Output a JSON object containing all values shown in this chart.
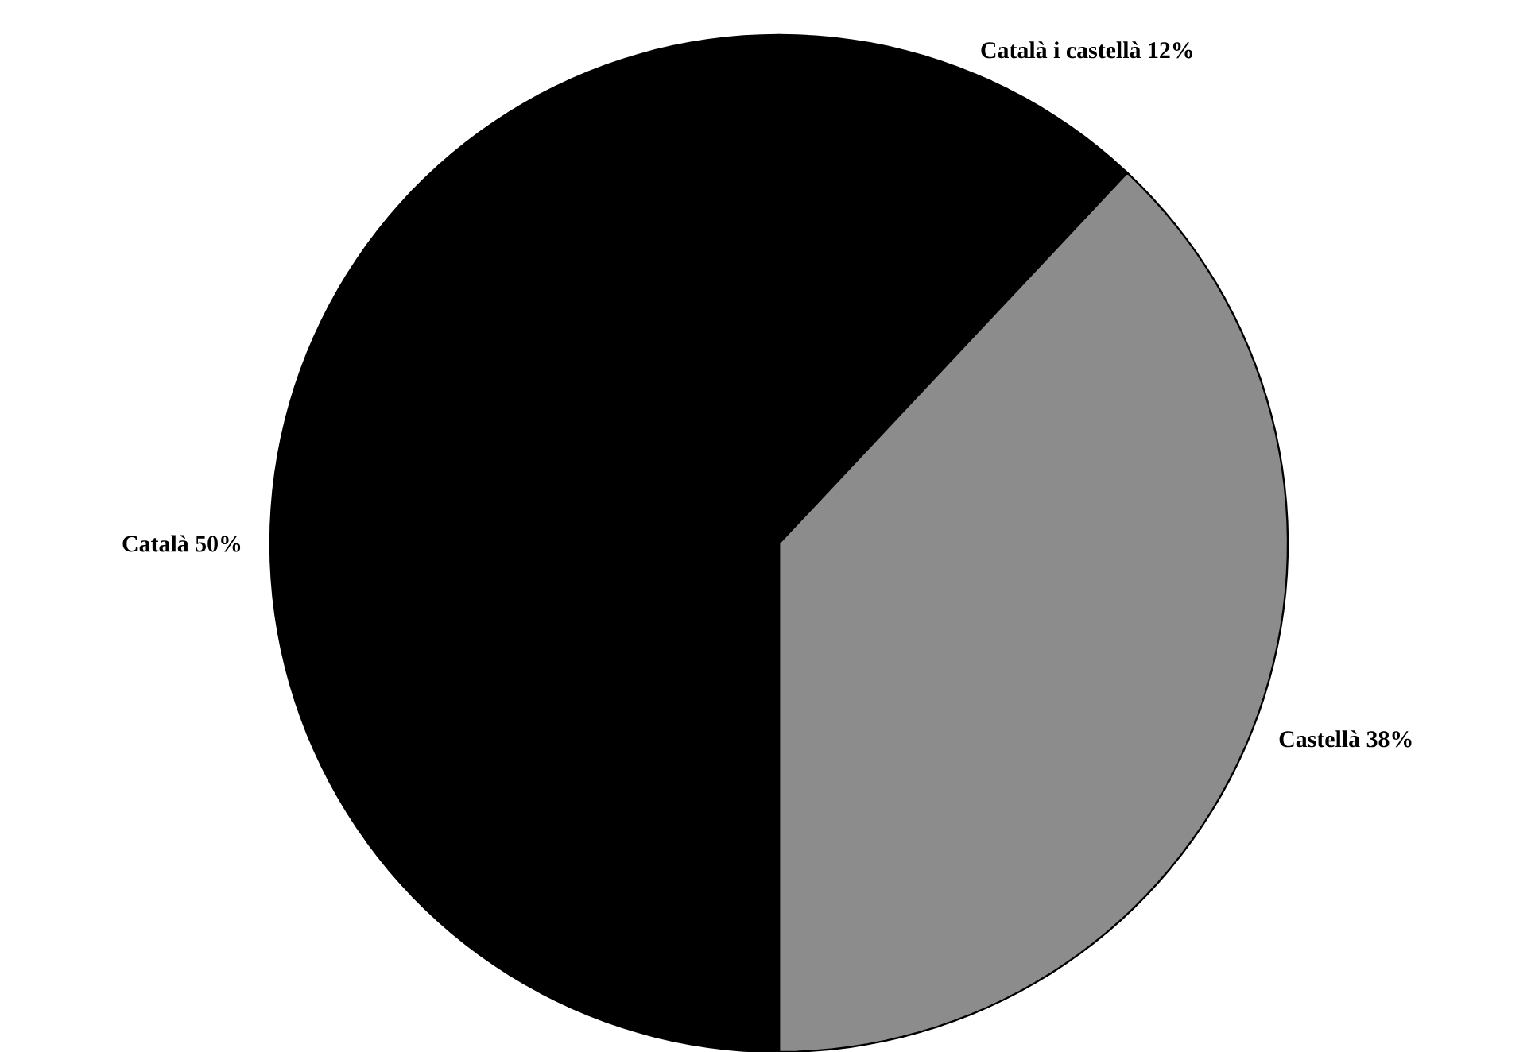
{
  "chart_data": {
    "type": "pie",
    "categories": [
      "Català i castellà",
      "Castellà",
      "Català"
    ],
    "values": [
      12,
      38,
      50
    ],
    "value_labels": [
      "12%",
      "38%",
      "50%"
    ],
    "colors": [
      "#000000",
      "#8c8c8c",
      "#000000"
    ]
  }
}
